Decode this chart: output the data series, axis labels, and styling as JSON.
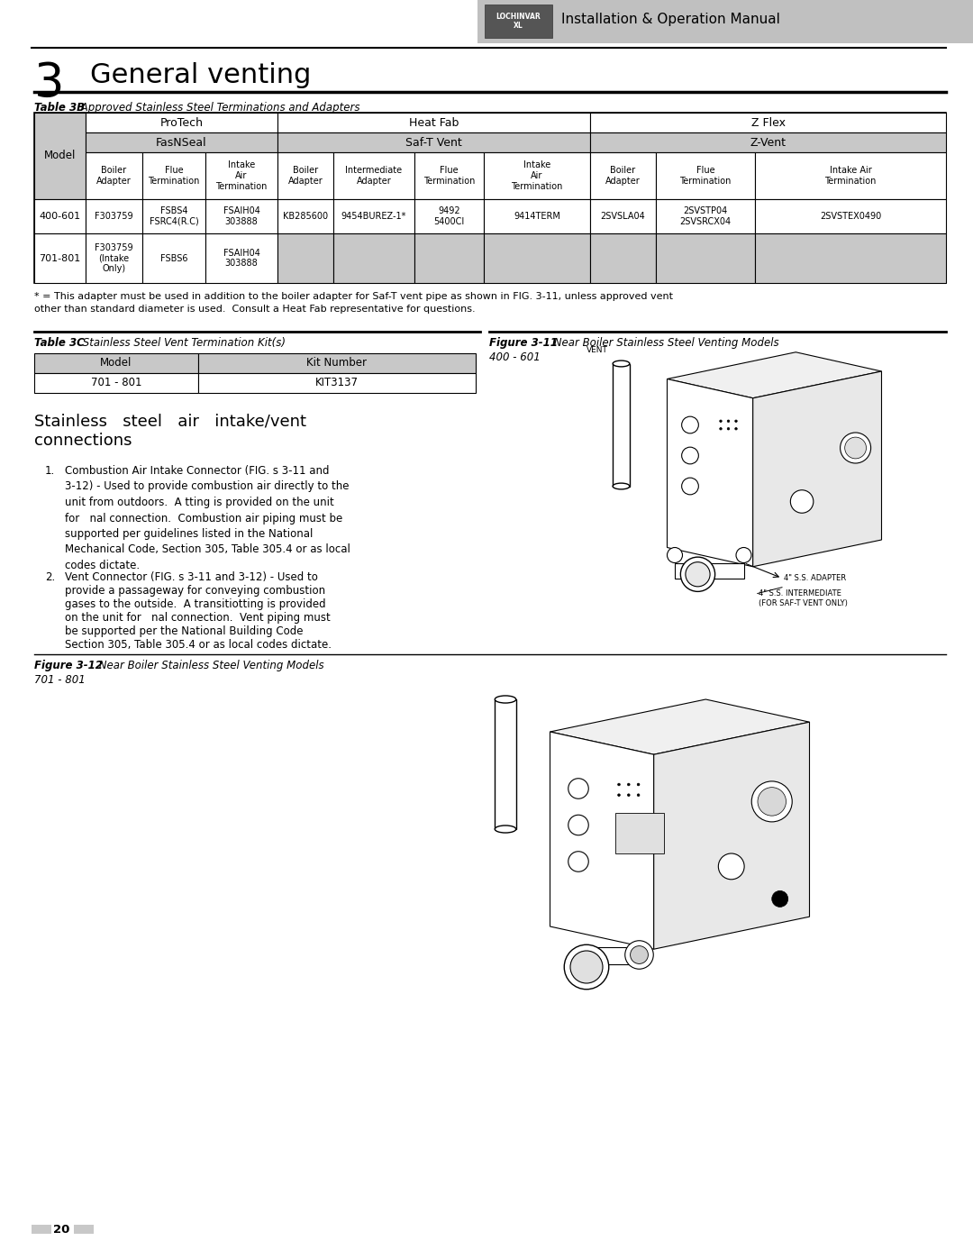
{
  "page_bg": "#ffffff",
  "header_text": "Installation & Operation Manual",
  "chapter_num": "3",
  "chapter_title": "General venting",
  "table3b_title_bold": "Table 3B",
  "table3b_title_rest": " Approved Stainless Steel Terminations and Adapters",
  "row1_model": "400-601",
  "row1_data": [
    "F303759",
    "FSBS4\nFSRC4(R.C)",
    "FSAIH04\n303888",
    "KB285600",
    "9454BUREZ-1*",
    "9492\n5400CI",
    "9414TERM",
    "2SVSLA04",
    "2SVSTP04\n2SVSRCX04",
    "2SVSTEX0490"
  ],
  "row2_model": "701-801",
  "row2_data": [
    "F303759\n(Intake\nOnly)",
    "FSBS6",
    "FSAIH04\n303888",
    "",
    "",
    "",
    "",
    "",
    "",
    ""
  ],
  "footnote_line1": "* = This adapter must be used in addition to the boiler adapter for Saf-T vent pipe as shown in FIG. 3-11, unless approved vent",
  "footnote_line2": "other than standard diameter is used.  Consult a Heat Fab representative for questions.",
  "table3c_title_bold": "Table 3C",
  "table3c_title_rest": " Stainless Steel Vent Termination Kit(s)",
  "fig311_title_bold": "Figure 3-11",
  "fig311_title_rest": " Near Boiler Stainless Steel Venting Models",
  "fig311_subtitle": "400 - 601",
  "fig312_title_bold": "Figure 3-12",
  "fig312_title_rest": " Near Boiler Stainless Steel Venting Models",
  "fig312_subtitle": "701 - 801",
  "section_heading_line1": "Stainless   steel   air   intake/vent",
  "section_heading_line2": "connections",
  "body_text_1": "Combustion Air Intake Connector (FIG. s 3-11 and\n3-12) - Used to provide combustion air directly to the\nunit from outdoors.  A tting is provided on the unit\nfor   nal connection.  Combustion air piping must be\nsupported per guidelines listed in the National\nMechanical Code, Section 305, Table 305.4 or as local\ncodes dictate.",
  "body_text_2_line1": "Vent Connector (FIG. s 3-11 and 3-12) - Used to",
  "body_text_2_line2": "provide a passageway for conveying combustion",
  "body_text_2_line3": "gases to the outside.  A transitiotting is provided",
  "body_text_2_line4": "on the unit for   nal connection.  Vent piping must",
  "body_text_2_line5": "be supported per the National Building Code",
  "body_text_2_line6": "Section 305, Table 305.4 or as local codes dictate.",
  "fig311_label_vent": "VENT",
  "fig311_label_adapter": "4\" S.S. ADAPTER",
  "fig311_label_intermediate2": "4\" S.S. INTERMEDIATE",
  "fig311_label_intermediate": "(FOR SAF-T VENT ONLY)",
  "page_num": "20",
  "gray_cell": "#c8c8c8",
  "header_gray": "#c0c0c0"
}
